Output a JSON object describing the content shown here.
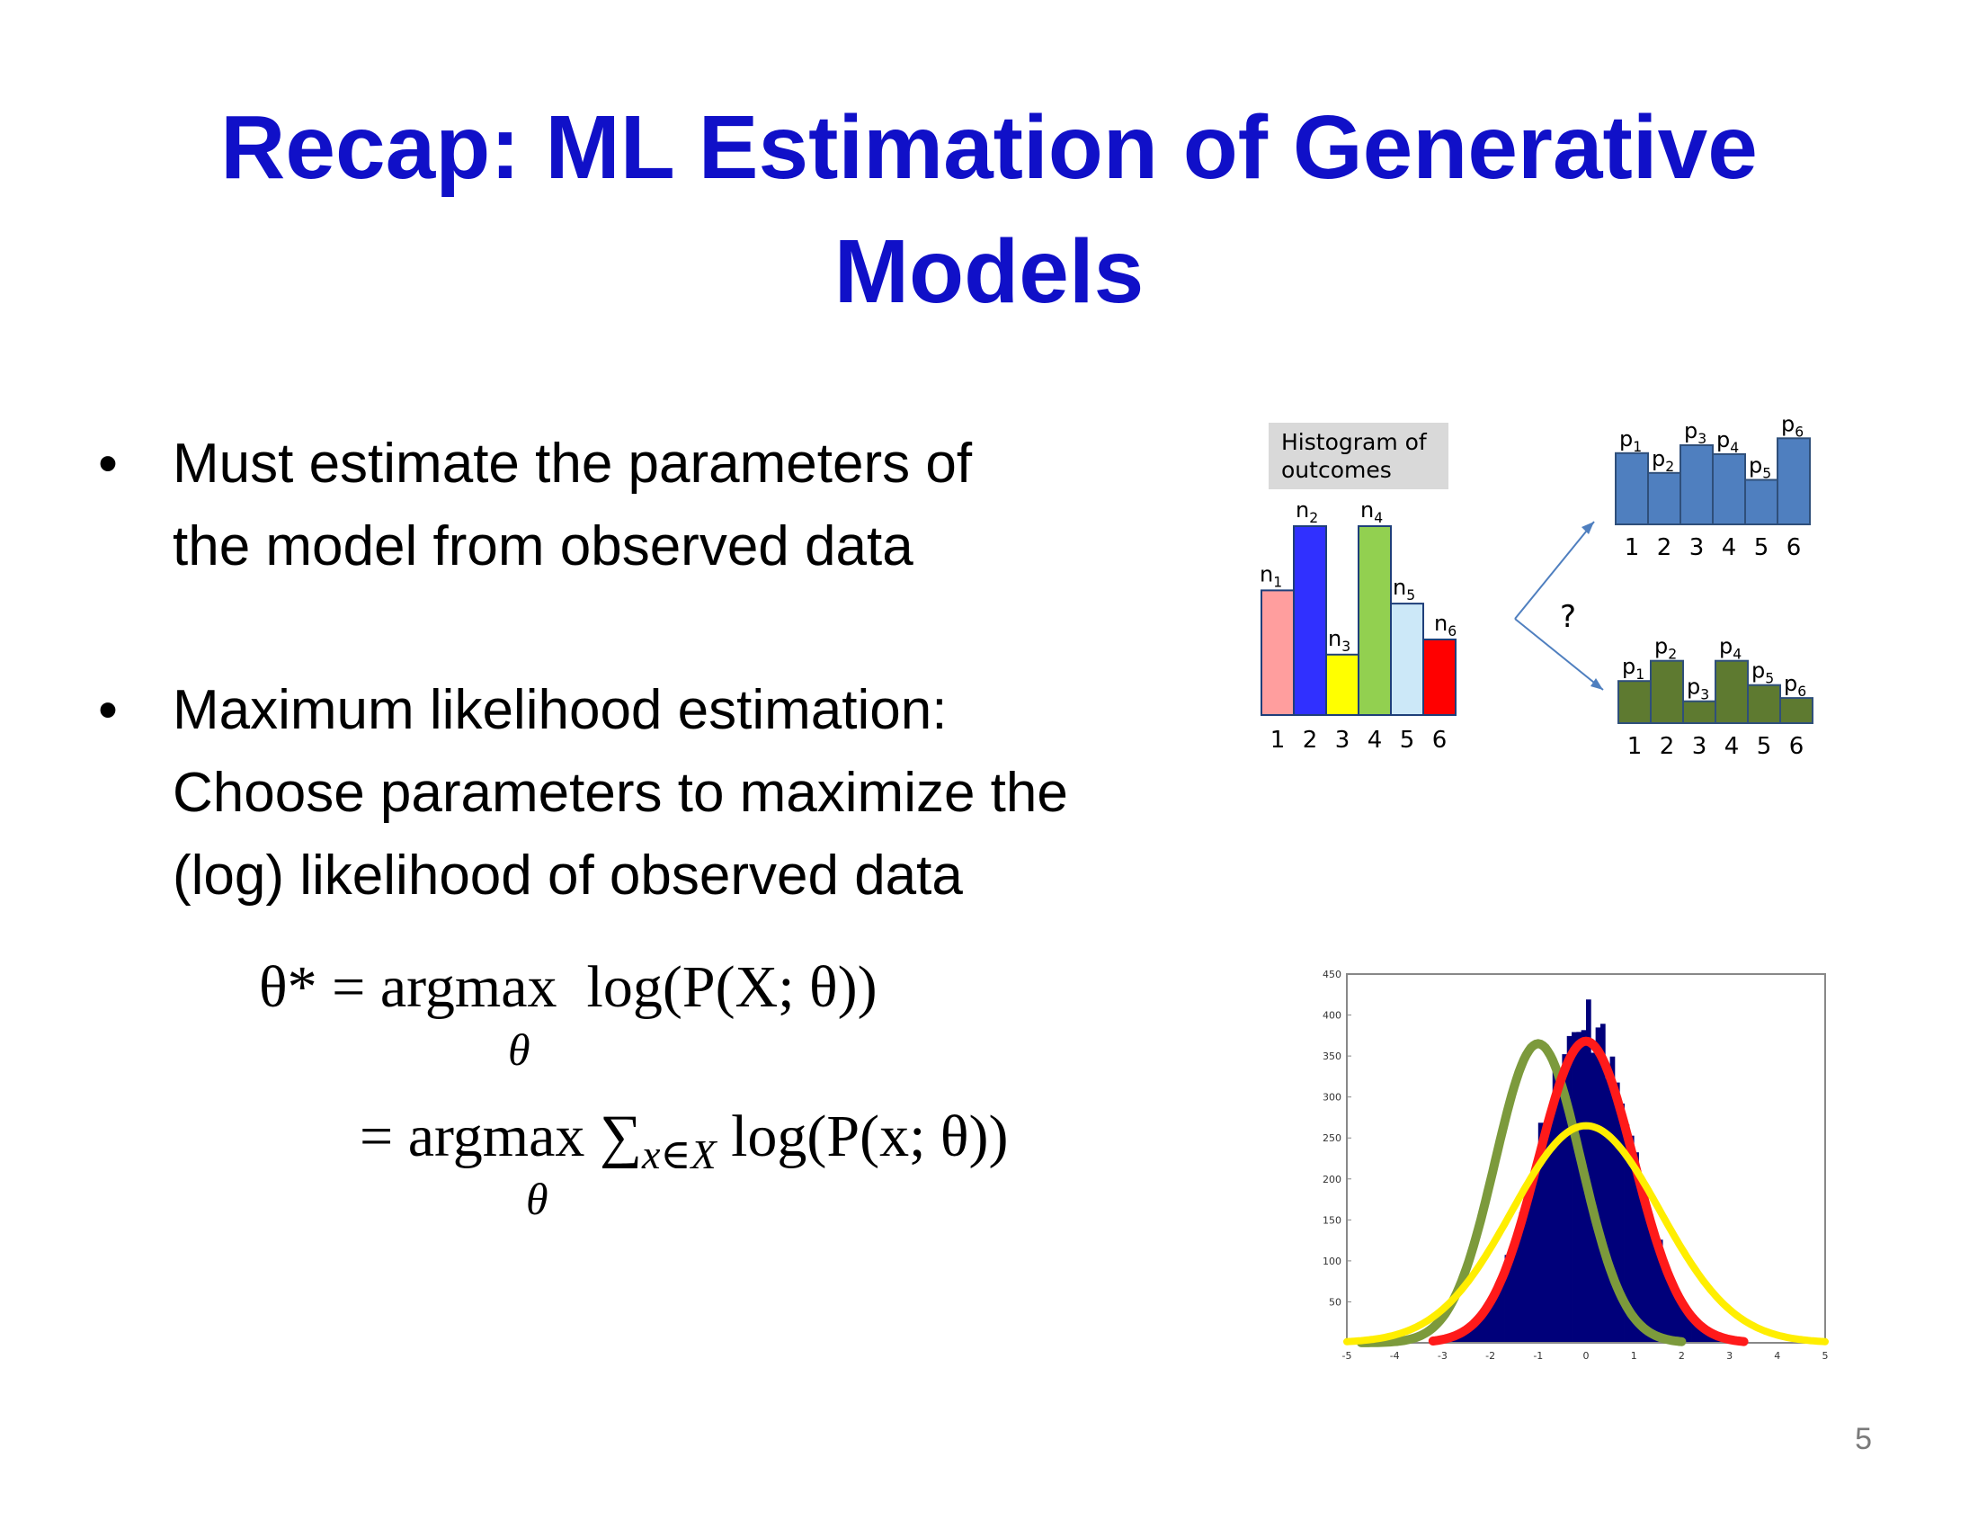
{
  "title": {
    "line1": "Recap: ML Estimation of Generative",
    "line2": "Models"
  },
  "bullets": [
    {
      "lines": [
        "Must estimate the parameters of",
        "the model from observed data"
      ]
    },
    {
      "lines": [
        "Maximum likelihood estimation:",
        "Choose parameters to maximize the",
        "(log) likelihood of observed data"
      ]
    }
  ],
  "formula": {
    "line1_lhs": "θ* = argmax",
    "line1_rhs": "log(P(X; θ))",
    "line2_lhs": "= argmax",
    "line2_sum": "∑",
    "line2_sum_sub": "x∈X",
    "line2_rhs": "log(P(x; θ))",
    "under": "θ"
  },
  "diagram": {
    "histogram_label": [
      "Histogram of",
      "outcomes"
    ],
    "question_mark": "?",
    "x_ticks": [
      "1",
      "2",
      "3",
      "4",
      "5",
      "6"
    ],
    "n_labels": [
      "n1",
      "n2",
      "n3",
      "n4",
      "n5",
      "n6"
    ],
    "p_labels": [
      "p1",
      "p2",
      "p3",
      "p4",
      "p5",
      "p6"
    ],
    "histogram_colors": [
      "#ff9e9e",
      "#3030ff",
      "#ffff00",
      "#92d050",
      "#cce8f8",
      "#ff0000"
    ],
    "histogram_values": [
      0.66,
      1.0,
      0.32,
      1.0,
      0.59,
      0.4
    ],
    "top_model_color": "#4f7fbf",
    "top_model_values": [
      0.72,
      0.52,
      0.8,
      0.71,
      0.45,
      0.87
    ],
    "bottom_model_color": "#5e7a30",
    "bottom_model_values": [
      0.52,
      0.77,
      0.27,
      0.77,
      0.47,
      0.31
    ]
  },
  "gaussian_plot": {
    "y_ticks": [
      "450",
      "400",
      "350",
      "300",
      "250",
      "200",
      "150",
      "100",
      "50"
    ],
    "x_ticks": [
      "-5",
      "-4",
      "-3",
      "-2",
      "-1",
      "0",
      "1",
      "2",
      "3",
      "4",
      "5"
    ],
    "histogram_color": "#00007a",
    "curve_colors": {
      "green": "#7c9a3c",
      "red": "#ff1a1a",
      "yellow": "#ffee00"
    }
  },
  "page_number": "5"
}
